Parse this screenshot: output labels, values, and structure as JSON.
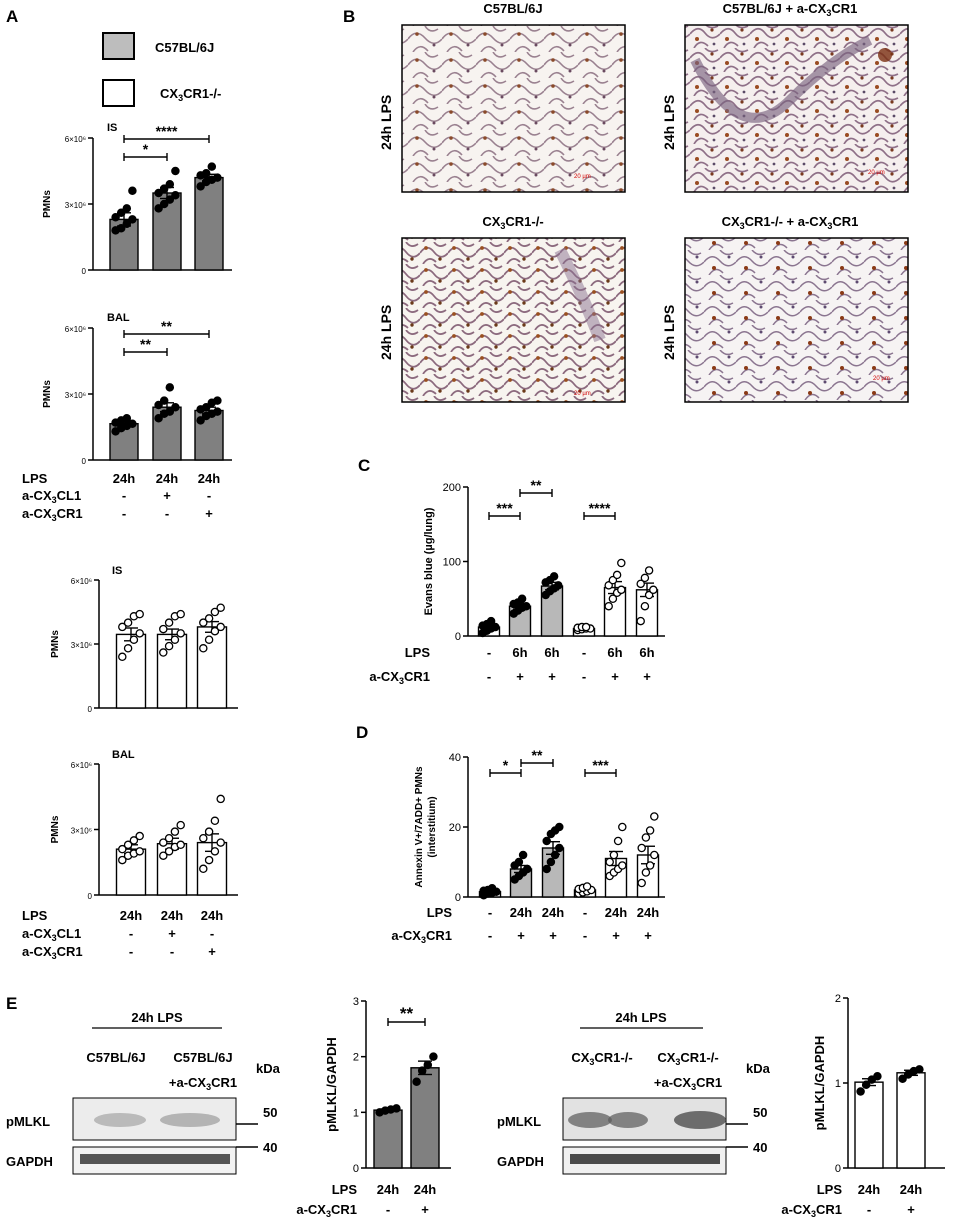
{
  "panels": {
    "A": "A",
    "B": "B",
    "C": "C",
    "D": "D",
    "E": "E"
  },
  "legend": {
    "wt": "C57BL/6J",
    "ko": "CX3CR1-/-",
    "wt_color": "#bdbdbd",
    "ko_color": "#ffffff"
  },
  "colors": {
    "gray_bar": "#808080",
    "light_bar": "#c0c0c0",
    "white_bar": "#ffffff",
    "black": "#000000"
  },
  "rowlabels": {
    "lps": "LPS",
    "acl1": "a-CX3CL1",
    "acr1": "a-CX3CR1",
    "h24": "24h",
    "h6": "6h",
    "minus": "-",
    "plus": "+"
  },
  "ticks": {
    "six_e6": "6×10⁶",
    "three_e6": "3×10⁶",
    "zero": "0"
  },
  "micrographs": {
    "tl_title": "C57BL/6J",
    "tr_title": "C57BL/6J + a-CX3CR1",
    "bl_title": "CX3CR1-/-",
    "br_title": "CX3CR1-/- + a-CX3CR1",
    "side_label": "24h LPS",
    "scale": "20 µm"
  },
  "western": {
    "lps_header": "24h LPS",
    "left_lane1": "C57BL/6J",
    "left_lane2": "C57BL/6J",
    "left_lane2b": "+a-CX3CR1",
    "right_lane1": "CX3CR1-/-",
    "right_lane2": "CX3CR1-/-",
    "right_lane2b": "+a-CX3CR1",
    "kda": "kDa",
    "pmlkl": "pMLKL",
    "gapdh": "GAPDH",
    "m50": "50",
    "m40": "40"
  },
  "chart_data": [
    {
      "id": "A1",
      "type": "bar",
      "title": "IS",
      "ylabel": "PMNs",
      "ylim": [
        0,
        6000000
      ],
      "yticks": [
        "0",
        "3×10⁶",
        "6×10⁶"
      ],
      "categories": [
        "24h / - / -",
        "24h / + / -",
        "24h / - / +"
      ],
      "values": [
        2300000,
        3500000,
        4200000
      ],
      "errors": [
        300000,
        250000,
        150000
      ],
      "points": [
        [
          1800000,
          1900000,
          2100000,
          2300000,
          2400000,
          2600000,
          2800000,
          3600000
        ],
        [
          2800000,
          3000000,
          3200000,
          3400000,
          3500000,
          3700000,
          3900000,
          4500000
        ],
        [
          3800000,
          4000000,
          4100000,
          4200000,
          4300000,
          4400000,
          4700000
        ]
      ],
      "significance": [
        {
          "from": 0,
          "to": 1,
          "label": "*"
        },
        {
          "from": 0,
          "to": 2,
          "label": "****"
        }
      ],
      "bar_color": "#808080",
      "point_style": "filled"
    },
    {
      "id": "A2",
      "type": "bar",
      "title": "BAL",
      "ylabel": "PMNs",
      "ylim": [
        0,
        6000000
      ],
      "yticks": [
        "0",
        "3×10⁶",
        "6×10⁶"
      ],
      "categories": [
        "24h / - / -",
        "24h / + / -",
        "24h / - / +"
      ],
      "values": [
        1650000,
        2400000,
        2250000
      ],
      "errors": [
        100000,
        200000,
        150000
      ],
      "points": [
        [
          1300000,
          1450000,
          1550000,
          1650000,
          1700000,
          1800000,
          1900000
        ],
        [
          1900000,
          2100000,
          2200000,
          2400000,
          2500000,
          2700000,
          3300000
        ],
        [
          1800000,
          2000000,
          2100000,
          2200000,
          2300000,
          2400000,
          2600000,
          2700000
        ]
      ],
      "significance": [
        {
          "from": 0,
          "to": 1,
          "label": "**"
        },
        {
          "from": 0,
          "to": 2,
          "label": "**"
        }
      ],
      "bar_color": "#808080",
      "point_style": "filled"
    },
    {
      "id": "A3",
      "type": "bar",
      "title": "IS",
      "ylabel": "PMNs",
      "ylim": [
        0,
        6000000
      ],
      "yticks": [
        "0",
        "3×10⁶",
        "6×10⁶"
      ],
      "categories": [
        "24h / - / -",
        "24h / + / -",
        "24h / - / +"
      ],
      "values": [
        3450000,
        3450000,
        3800000
      ],
      "errors": [
        300000,
        250000,
        250000
      ],
      "points": [
        [
          2400000,
          2800000,
          3200000,
          3500000,
          3800000,
          4000000,
          4300000,
          4400000
        ],
        [
          2600000,
          2900000,
          3200000,
          3500000,
          3700000,
          4000000,
          4300000,
          4400000
        ],
        [
          2800000,
          3200000,
          3600000,
          3800000,
          4000000,
          4200000,
          4500000,
          4700000
        ]
      ],
      "significance": [],
      "bar_color": "#ffffff",
      "point_style": "open"
    },
    {
      "id": "A4",
      "type": "bar",
      "title": "BAL",
      "ylabel": "PMNs",
      "ylim": [
        0,
        6000000
      ],
      "yticks": [
        "0",
        "3×10⁶",
        "6×10⁶"
      ],
      "categories": [
        "24h / - / -",
        "24h / + / -",
        "24h / - / +"
      ],
      "values": [
        2100000,
        2350000,
        2400000
      ],
      "errors": [
        200000,
        250000,
        400000
      ],
      "points": [
        [
          1600000,
          1800000,
          1900000,
          2000000,
          2100000,
          2300000,
          2500000,
          2700000
        ],
        [
          1800000,
          2000000,
          2200000,
          2300000,
          2400000,
          2600000,
          2900000,
          3200000
        ],
        [
          1200000,
          1600000,
          2000000,
          2400000,
          2600000,
          2900000,
          3400000,
          4400000
        ]
      ],
      "significance": [],
      "bar_color": "#ffffff",
      "point_style": "open"
    },
    {
      "id": "C",
      "type": "bar",
      "title": "",
      "ylabel": "Evans blue (µg/lung)",
      "ylim": [
        0,
        200
      ],
      "yticks": [
        "0",
        "100",
        "200"
      ],
      "categories": [
        "- / -",
        "6h / +",
        "6h / +",
        "- / -",
        "6h / +",
        "6h / +"
      ],
      "values": [
        12,
        40,
        67,
        10,
        65,
        62
      ],
      "errors": [
        3,
        4,
        5,
        1,
        8,
        9
      ],
      "points": [
        [
          4,
          7,
          10,
          12,
          14,
          16,
          20
        ],
        [
          30,
          34,
          38,
          40,
          43,
          45,
          50
        ],
        [
          55,
          60,
          64,
          68,
          72,
          75,
          80
        ],
        [
          8,
          9,
          10,
          10,
          11,
          12,
          12
        ],
        [
          40,
          50,
          58,
          62,
          68,
          75,
          82,
          98
        ],
        [
          20,
          40,
          55,
          62,
          70,
          78,
          88
        ]
      ],
      "series_styles": [
        "filled-white",
        "filled-gray",
        "filled-gray",
        "open-white",
        "open-white",
        "open-white"
      ],
      "significance": [
        {
          "from": 0,
          "to": 1,
          "label": "***"
        },
        {
          "from": 1,
          "to": 2,
          "label": "**"
        },
        {
          "from": 3,
          "to": 4,
          "label": "****"
        }
      ]
    },
    {
      "id": "D",
      "type": "bar",
      "title": "",
      "ylabel": "Annexin V+/7ADD+ PMNs (interstitium)",
      "ylim": [
        0,
        40
      ],
      "yticks": [
        "0",
        "20",
        "40"
      ],
      "categories": [
        "- / -",
        "24h / +",
        "24h / +",
        "- / -",
        "24h / +",
        "24h / +"
      ],
      "values": [
        1.5,
        8,
        14,
        2,
        11,
        12
      ],
      "errors": [
        0.3,
        1,
        1.8,
        0.3,
        2,
        2.5
      ],
      "points": [
        [
          0.5,
          1,
          1.2,
          1.5,
          1.8,
          2,
          2.5
        ],
        [
          5,
          6,
          7,
          8,
          9,
          10,
          12
        ],
        [
          8,
          10,
          12,
          14,
          16,
          18,
          19,
          20
        ],
        [
          1,
          1.3,
          1.6,
          2,
          2.3,
          2.6,
          3
        ],
        [
          6,
          7,
          8,
          9,
          10,
          12,
          16,
          20
        ],
        [
          4,
          7,
          9,
          12,
          14,
          17,
          19,
          23
        ]
      ],
      "series_styles": [
        "filled-white",
        "filled-gray",
        "filled-gray",
        "open-white",
        "open-white",
        "open-white"
      ],
      "significance": [
        {
          "from": 0,
          "to": 1,
          "label": "*"
        },
        {
          "from": 1,
          "to": 2,
          "label": "**"
        },
        {
          "from": 3,
          "to": 4,
          "label": "***"
        }
      ]
    },
    {
      "id": "E1",
      "type": "bar",
      "title": "",
      "ylabel": "pMLKL/GAPDH",
      "ylim": [
        0,
        3
      ],
      "yticks": [
        "0",
        "1",
        "2",
        "3"
      ],
      "categories": [
        "24h / -",
        "24h / +"
      ],
      "values": [
        1.04,
        1.8
      ],
      "errors": [
        0.02,
        0.12
      ],
      "points": [
        [
          1.0,
          1.03,
          1.05,
          1.07
        ],
        [
          1.55,
          1.75,
          1.85,
          2.0
        ]
      ],
      "significance": [
        {
          "from": 0,
          "to": 1,
          "label": "**"
        }
      ],
      "bar_color": "#808080",
      "point_style": "filled"
    },
    {
      "id": "E2",
      "type": "bar",
      "title": "",
      "ylabel": "pMLKL/GAPDH",
      "ylim": [
        0,
        2
      ],
      "yticks": [
        "0",
        "1",
        "2"
      ],
      "categories": [
        "24h / -",
        "24h / +"
      ],
      "values": [
        1.01,
        1.12
      ],
      "errors": [
        0.04,
        0.03
      ],
      "points": [
        [
          0.9,
          0.98,
          1.04,
          1.08
        ],
        [
          1.05,
          1.1,
          1.14,
          1.16
        ]
      ],
      "significance": [],
      "bar_color": "#ffffff",
      "point_style": "filled"
    }
  ]
}
